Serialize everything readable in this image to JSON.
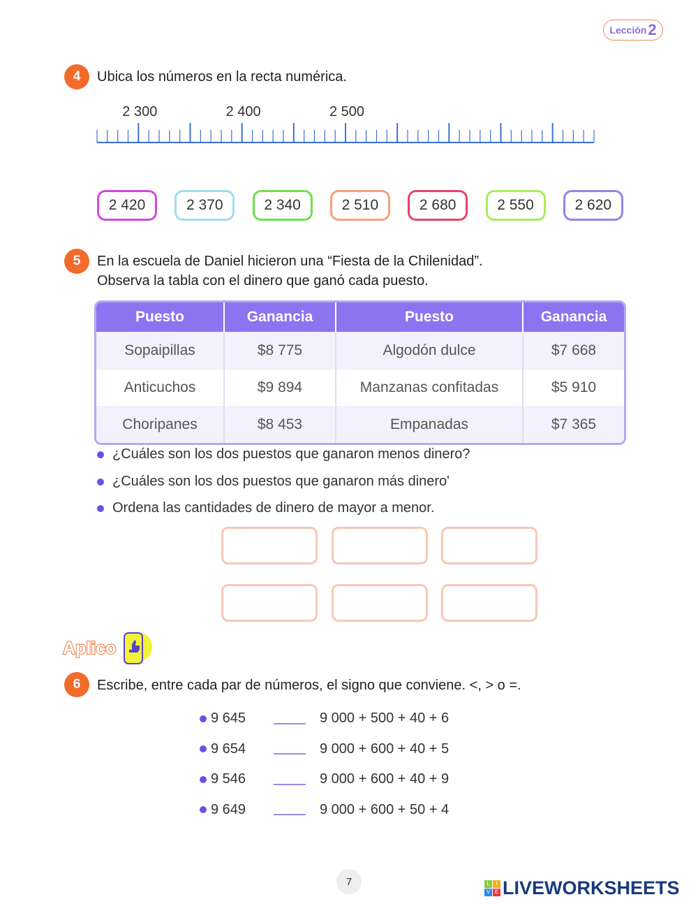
{
  "header": {
    "lesson_label": "Lección",
    "lesson_number": "2"
  },
  "ex4": {
    "number": "4",
    "instruction": "Ubica los números en la recta numérica.",
    "number_line": {
      "start": 2260,
      "end": 2740,
      "minor_step": 10,
      "major_step": 50,
      "labels": [
        "2 300",
        "2 400",
        "2 500"
      ],
      "label_values": [
        2300,
        2400,
        2500
      ],
      "color": "#3a6fd8"
    },
    "cards": [
      {
        "value": "2 420",
        "color": "#d04adf"
      },
      {
        "value": "2 370",
        "color": "#9fdcf2"
      },
      {
        "value": "2 340",
        "color": "#6ee04a"
      },
      {
        "value": "2 510",
        "color": "#f5a27a"
      },
      {
        "value": "2 680",
        "color": "#e8426a"
      },
      {
        "value": "2 550",
        "color": "#a8ec5a"
      },
      {
        "value": "2 620",
        "color": "#9a82ea"
      }
    ]
  },
  "ex5": {
    "number": "5",
    "line1": "En la escuela de Daniel hicieron una “Fiesta de la Chilenidad”.",
    "line2": "Observa la tabla con el dinero que ganó cada puesto.",
    "headers": [
      "Puesto",
      "Ganancia",
      "Puesto",
      "Ganancia"
    ],
    "rows": [
      [
        "Sopaipillas",
        "$8 775",
        "Algodón dulce",
        "$7 668"
      ],
      [
        "Anticuchos",
        "$9 894",
        "Manzanas confitadas",
        "$5 910"
      ],
      [
        "Choripanes",
        "$8 453",
        "Empanadas",
        "$7 365"
      ]
    ],
    "questions": [
      "¿Cuáles son los dos puestos que ganaron menos dinero?",
      "¿Cuáles son los dos puestos que ganaron más dinero'",
      "Ordena las cantidades de dinero de mayor a menor."
    ]
  },
  "aplico": {
    "label": "Aplico"
  },
  "ex6": {
    "number": "6",
    "instruction": "Escribe, entre cada par de números, el signo que conviene. <, > o =.",
    "items": [
      {
        "left": "9 645",
        "right": "9 000 + 500 + 40 + 6"
      },
      {
        "left": "9 654",
        "right": "9 000 + 600 + 40 + 5"
      },
      {
        "left": "9 546",
        "right": "9 000 + 600 + 40 + 9"
      },
      {
        "left": "9 649",
        "right": "9 000 + 600 + 50 + 4"
      }
    ]
  },
  "footer": {
    "page_number": "7",
    "brand": "LIVEWORKSHEETS",
    "brand_letters": [
      "L",
      "I",
      "V",
      "E"
    ]
  }
}
